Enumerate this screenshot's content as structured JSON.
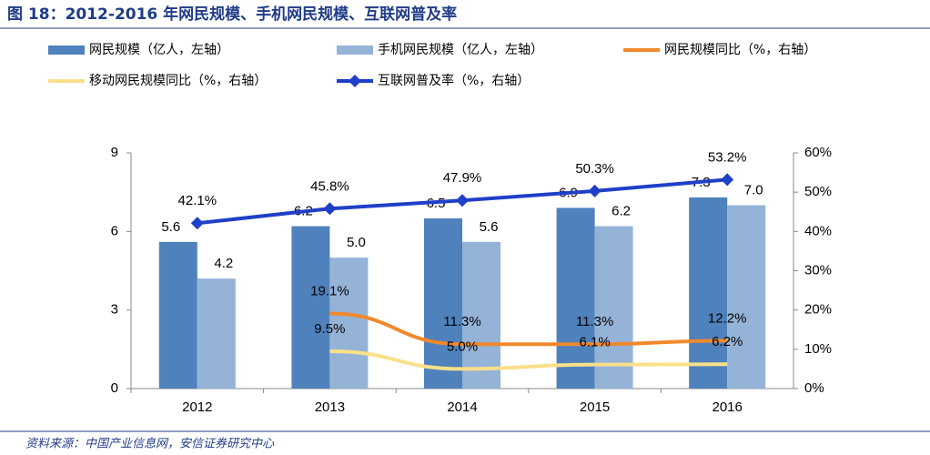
{
  "chart_data": {
    "type": "bar",
    "title": "图 18：2012-2016 年网民规模、手机网民规模、互联网普及率",
    "source": "资料来源：中国产业信息网，安信证券研究中心",
    "categories": [
      "2012",
      "2013",
      "2014",
      "2015",
      "2016"
    ],
    "ylim": [
      0,
      9
    ],
    "yticks": [
      0,
      3,
      6,
      9
    ],
    "y2lim": [
      0,
      60
    ],
    "y2ticks": [
      {
        "value": 0,
        "label": "0%"
      },
      {
        "value": 10,
        "label": "10%"
      },
      {
        "value": 20,
        "label": "20%"
      },
      {
        "value": 30,
        "label": "30%"
      },
      {
        "value": 40,
        "label": "40%"
      },
      {
        "value": 50,
        "label": "50%"
      },
      {
        "value": 60,
        "label": "60%"
      }
    ],
    "series": [
      {
        "name": "网民规模（亿人，左轴）",
        "type": "bar",
        "color": "#4f81bd",
        "values": [
          5.6,
          6.2,
          6.5,
          6.9,
          7.3
        ],
        "value_labels": [
          "5.6",
          "6.2",
          "6.5",
          "6.9",
          "7.3"
        ]
      },
      {
        "name": "手机网民规模（亿人，左轴）",
        "type": "bar",
        "color": "#95b3d7",
        "values": [
          4.2,
          5.0,
          5.6,
          6.2,
          7.0
        ],
        "value_labels": [
          "4.2",
          "5.0",
          "5.6",
          "6.2",
          "7.0"
        ]
      },
      {
        "name": "网民规模同比（%，右轴）",
        "type": "line",
        "axis": "y2",
        "color": "#f0892c",
        "values": [
          null,
          19.1,
          11.3,
          11.3,
          12.2
        ],
        "value_labels": [
          null,
          "19.1%",
          "11.3%",
          "11.3%",
          "12.2%"
        ]
      },
      {
        "name": "移动网民规模同比（%，右轴）",
        "type": "line",
        "axis": "y2",
        "color": "#fbe08a",
        "values": [
          null,
          9.5,
          5.0,
          6.1,
          6.2
        ],
        "value_labels": [
          null,
          "9.5%",
          "5.0%",
          "6.1%",
          "6.2%"
        ]
      },
      {
        "name": "互联网普及率（%，右轴）",
        "type": "line",
        "axis": "y2",
        "marker": "diamond",
        "color": "#1f3fc8",
        "values": [
          42.1,
          45.8,
          47.9,
          50.3,
          53.2
        ],
        "value_labels": [
          "42.1%",
          "45.8%",
          "47.9%",
          "50.3%",
          "53.2%"
        ]
      }
    ]
  }
}
